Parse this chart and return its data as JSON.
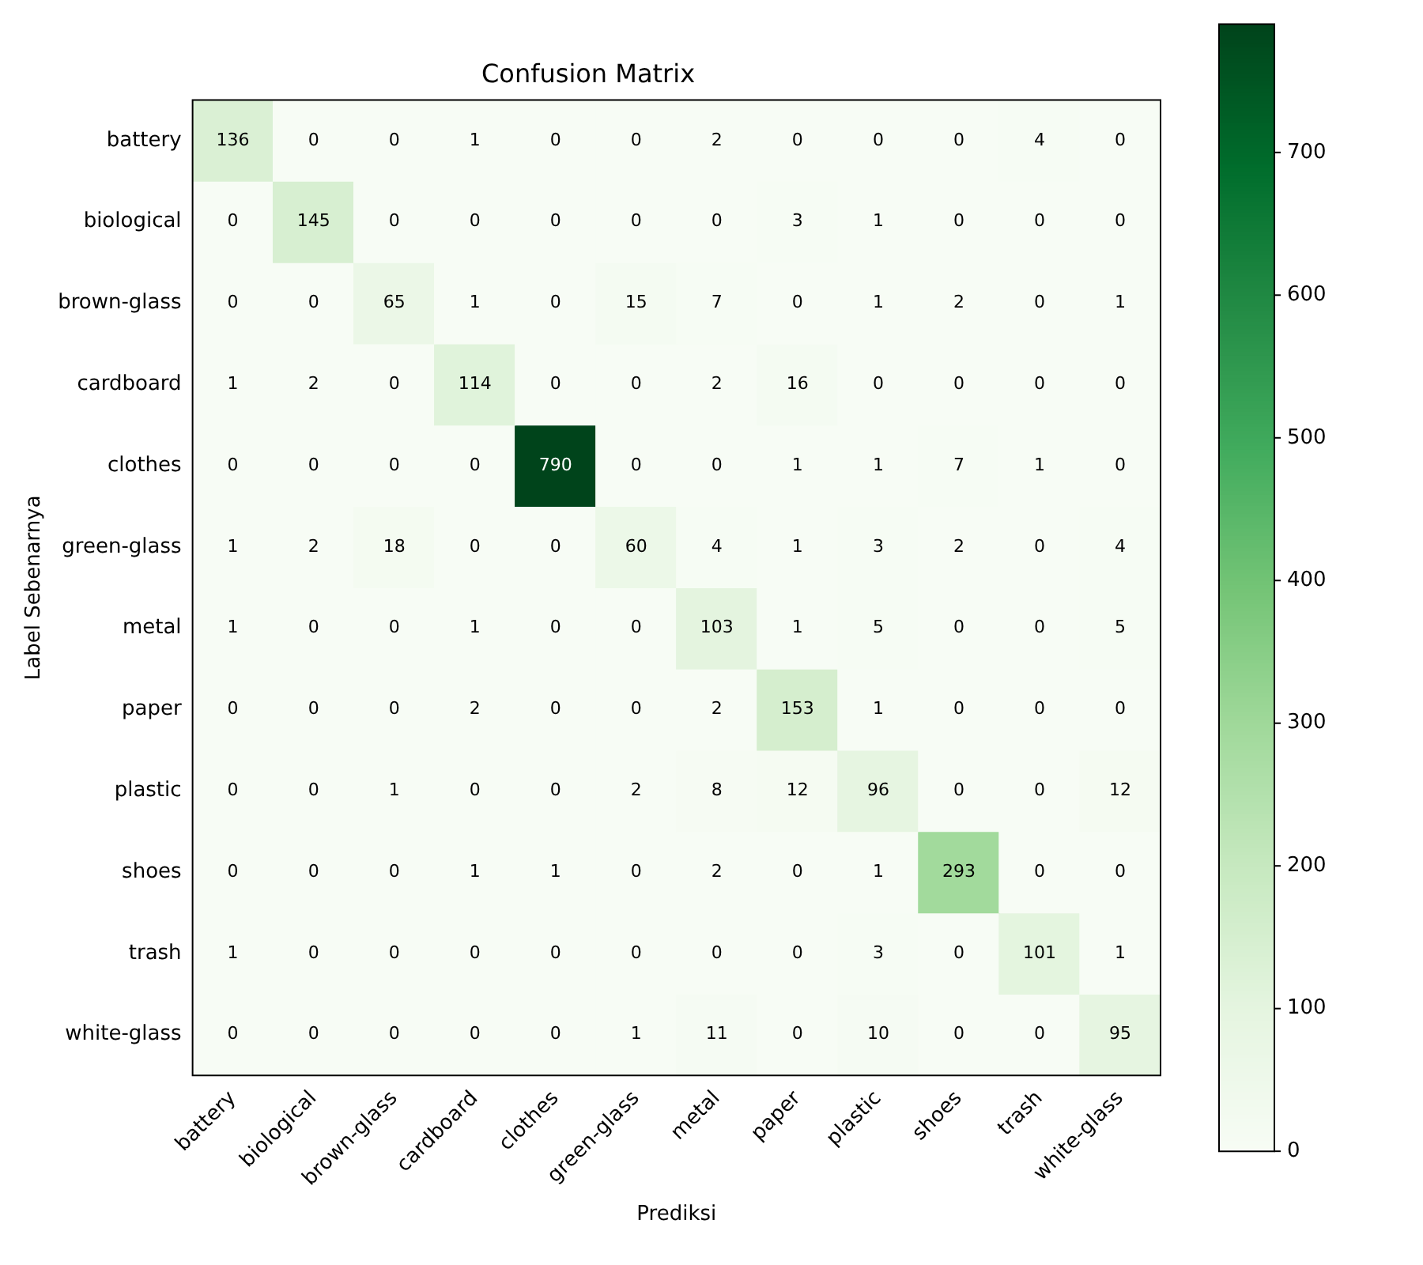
{
  "chart_data": {
    "type": "heatmap",
    "title": "Confusion Matrix",
    "xlabel": "Prediksi",
    "ylabel": "Label Sebenarnya",
    "categories": [
      "battery",
      "biological",
      "brown-glass",
      "cardboard",
      "clothes",
      "green-glass",
      "metal",
      "paper",
      "plastic",
      "shoes",
      "trash",
      "white-glass"
    ],
    "y_categories": [
      "battery",
      "biological",
      "brown-glass",
      "cardboard",
      "clothes",
      "green-glass",
      "metal",
      "paper",
      "plastic",
      "shoes",
      "trash",
      "white-glass"
    ],
    "cells": [
      [
        136,
        0,
        0,
        1,
        0,
        0,
        2,
        0,
        0,
        0,
        4,
        0
      ],
      [
        0,
        145,
        0,
        0,
        0,
        0,
        0,
        3,
        1,
        0,
        0,
        0
      ],
      [
        0,
        0,
        65,
        1,
        0,
        15,
        7,
        0,
        1,
        2,
        0,
        1
      ],
      [
        1,
        2,
        0,
        114,
        0,
        0,
        2,
        16,
        0,
        0,
        0,
        0
      ],
      [
        0,
        0,
        0,
        0,
        790,
        0,
        0,
        1,
        1,
        7,
        1,
        0
      ],
      [
        1,
        2,
        18,
        0,
        0,
        60,
        4,
        1,
        3,
        2,
        0,
        4
      ],
      [
        1,
        0,
        0,
        1,
        0,
        0,
        103,
        1,
        5,
        0,
        0,
        5
      ],
      [
        0,
        0,
        0,
        2,
        0,
        0,
        2,
        153,
        1,
        0,
        0,
        0
      ],
      [
        0,
        0,
        1,
        0,
        0,
        2,
        8,
        12,
        96,
        0,
        0,
        12
      ],
      [
        0,
        0,
        0,
        1,
        1,
        0,
        2,
        0,
        1,
        293,
        0,
        0
      ],
      [
        1,
        0,
        0,
        0,
        0,
        0,
        0,
        0,
        3,
        0,
        101,
        1
      ],
      [
        0,
        0,
        0,
        0,
        0,
        1,
        11,
        0,
        10,
        0,
        0,
        95
      ]
    ],
    "clim": [
      0,
      790
    ],
    "cticks": [
      0,
      100,
      200,
      300,
      400,
      500,
      600,
      700
    ],
    "data_labels": true
  }
}
